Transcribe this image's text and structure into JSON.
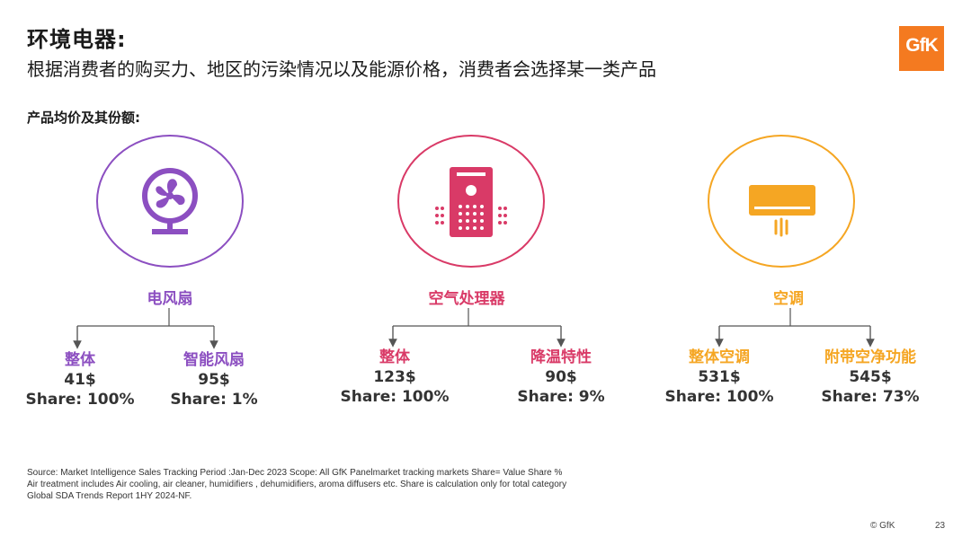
{
  "header": {
    "title": "环境电器:",
    "subtitle": "根据消费者的购买力、地区的污染情况以及能源价格，消费者会选择某一类产品",
    "section_label": "产品均价及其份额:",
    "logo_text": "GfK",
    "logo_color": "#f47a20"
  },
  "categories": [
    {
      "name": "电风扇",
      "icon": "fan-icon",
      "color": "#8c4fc1",
      "items": [
        {
          "name": "整体",
          "price": "41$",
          "share": "Share: 100%"
        },
        {
          "name": "智能风扇",
          "price": "95$",
          "share": "Share: 1%"
        }
      ]
    },
    {
      "name": "空气处理器",
      "icon": "air-purifier-icon",
      "color": "#d93a67",
      "items": [
        {
          "name": "整体",
          "price": "123$",
          "share": "Share: 100%"
        },
        {
          "name": "降温特性",
          "price": "90$",
          "share": "Share: 9%"
        }
      ]
    },
    {
      "name": "空调",
      "icon": "air-conditioner-icon",
      "color": "#f5a623",
      "items": [
        {
          "name": "整体空调",
          "price": "531$",
          "share": "Share: 100%"
        },
        {
          "name": "附带空净功能",
          "price": "545$",
          "share": "Share: 73%"
        }
      ]
    }
  ],
  "footer": {
    "source_line1": "Source: Market Intelligence Sales Tracking Period :Jan-Dec 2023 Scope: All GfK Panelmarket tracking markets Share= Value Share %",
    "source_line2": "Air treatment includes Air cooling, air cleaner, humidifiers , dehumidifiers, aroma diffusers etc. Share is calculation only for total category",
    "source_line3": "Global SDA Trends Report 1HY 2024-NF.",
    "copyright": "© GfK",
    "page_number": "23"
  }
}
